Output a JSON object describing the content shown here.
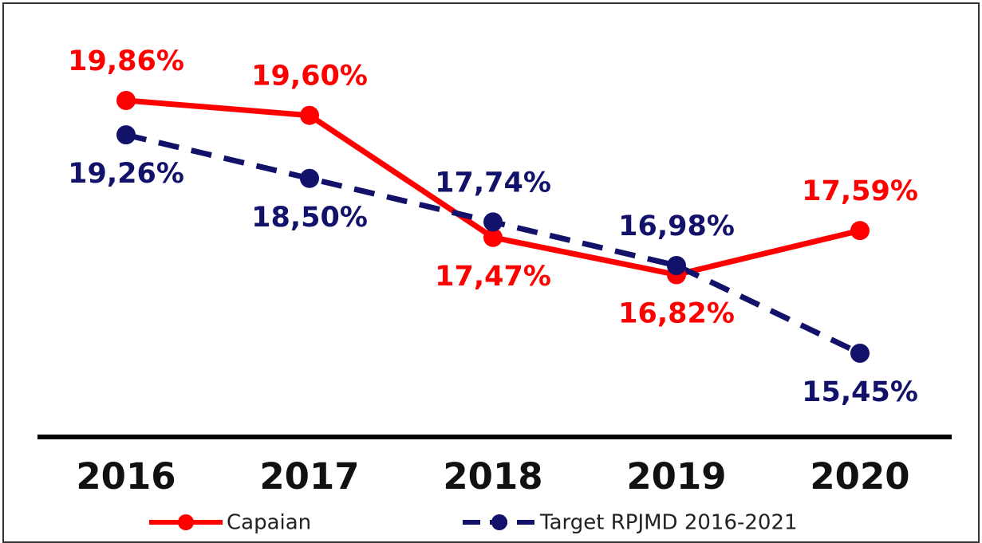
{
  "chart_data": {
    "type": "line",
    "categories": [
      "2016",
      "2017",
      "2018",
      "2019",
      "2020"
    ],
    "series": [
      {
        "name": "Capaian",
        "color": "#ff0000",
        "dash": false,
        "values": [
          19.86,
          19.6,
          17.47,
          16.82,
          17.59
        ],
        "value_labels": [
          "19,86%",
          "19,60%",
          "17,47%",
          "16,82%",
          "17,59%"
        ]
      },
      {
        "name": "Target RPJMD 2016-2021",
        "color": "#12126b",
        "dash": true,
        "values": [
          19.26,
          18.5,
          17.74,
          16.98,
          15.45
        ],
        "value_labels": [
          "19,26%",
          "18,50%",
          "17,74%",
          "16,98%",
          "15,45%"
        ]
      }
    ]
  }
}
